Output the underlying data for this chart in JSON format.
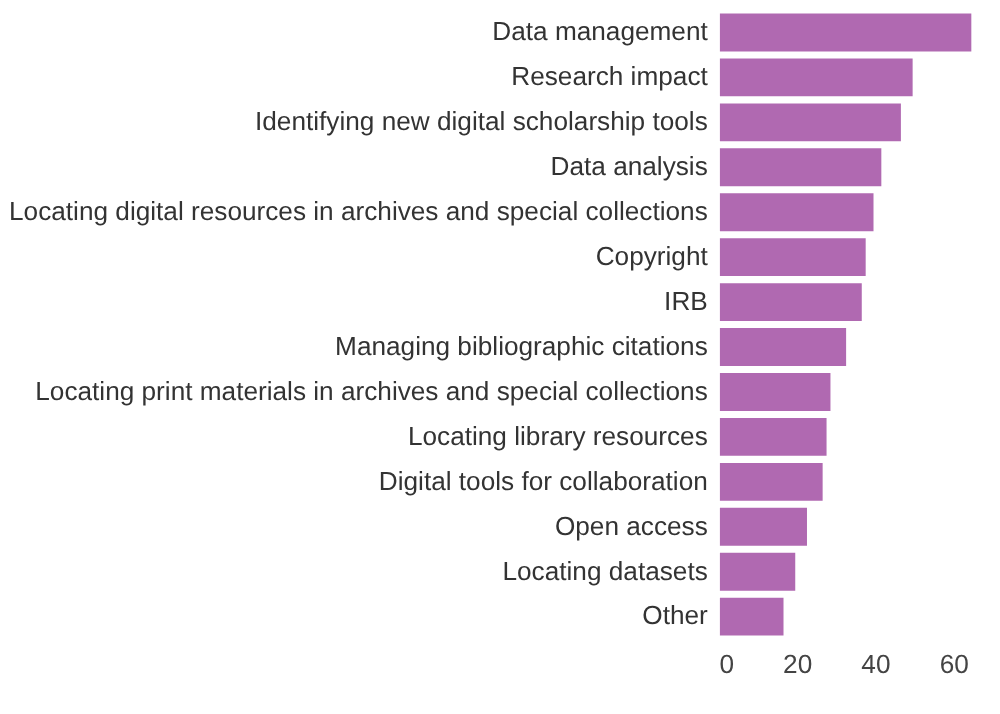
{
  "chart_data": {
    "type": "bar",
    "orientation": "horizontal",
    "categories": [
      "Data management",
      "Research impact",
      "Identifying new digital scholarship tools",
      "Data analysis",
      "Locating digital resources in archives and special collections",
      "Copyright",
      "IRB",
      "Managing bibliographic citations",
      "Locating print materials in archives and special collections",
      "Locating library resources",
      "Digital tools for collaboration",
      "Open access",
      "Locating datasets",
      "Other"
    ],
    "values": [
      65,
      50,
      47,
      42,
      40,
      38,
      37,
      33,
      29,
      28,
      27,
      23,
      20,
      17
    ],
    "color": "#b069b1",
    "xlim": [
      0,
      66
    ],
    "xticks": [
      0,
      20,
      40,
      60
    ],
    "grid": false
  }
}
